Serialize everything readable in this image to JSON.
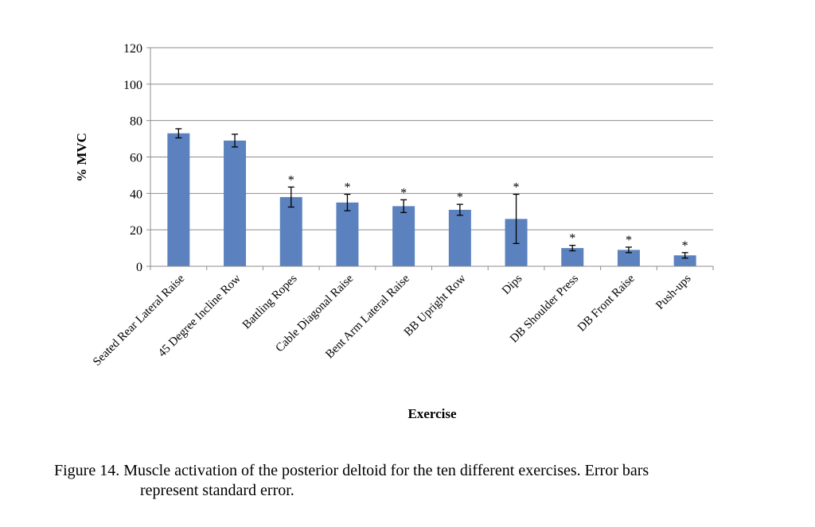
{
  "chart_data": {
    "type": "bar",
    "title": "",
    "xlabel": "Exercise",
    "ylabel": "% MVC",
    "ylim": [
      0,
      120
    ],
    "yticks": [
      0,
      20,
      40,
      60,
      80,
      100,
      120
    ],
    "grid": true,
    "bar_color": "#5b82be",
    "categories": [
      "Seated Rear Lateral Raise",
      "45 Degree Incline Row",
      "Battling Ropes",
      "Cable Diagonal Raise",
      "Bent Arm Lateral Raise",
      "BB Upright Row",
      "Dips",
      "DB Shoulder Press",
      "DB Front Raise",
      "Push-ups"
    ],
    "values": [
      73,
      69,
      38,
      35,
      33,
      31,
      26,
      10,
      9,
      6
    ],
    "errors": [
      2.5,
      3.5,
      5.5,
      4.5,
      3.5,
      3,
      13.5,
      1.5,
      1.5,
      1.5
    ],
    "significance": [
      "",
      "",
      "*",
      "*",
      "*",
      "*",
      "*",
      "*",
      "*",
      "*"
    ]
  },
  "caption": {
    "line1": "Figure 14.  Muscle activation of the posterior deltoid for the ten different exercises. Error bars",
    "line2": "represent standard error."
  }
}
